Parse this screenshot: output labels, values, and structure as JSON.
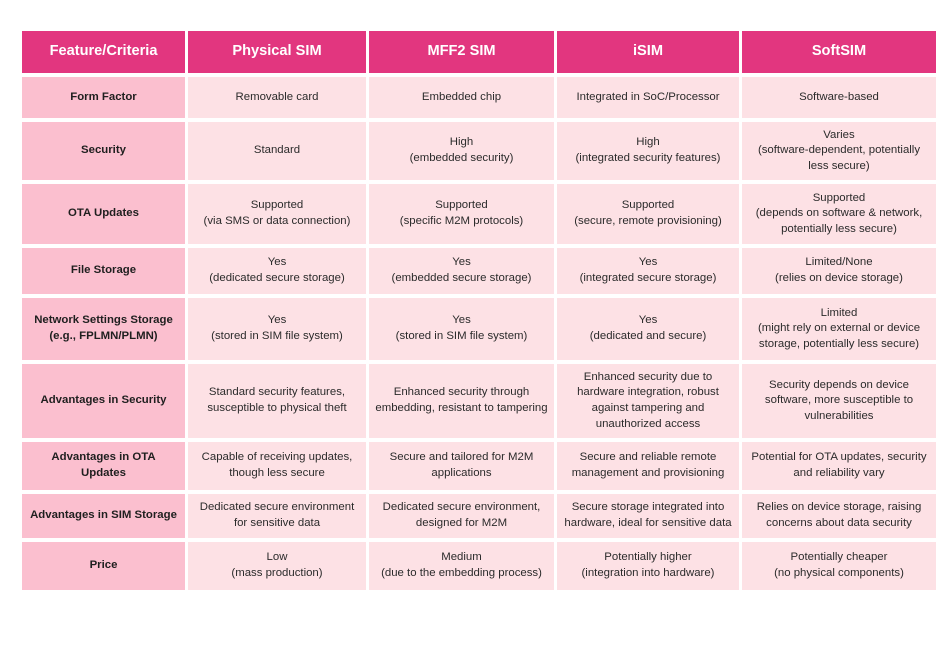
{
  "table": {
    "headers": [
      "Feature/Criteria",
      "Physical SIM",
      "MFF2 SIM",
      "iSIM",
      "SoftSIM"
    ],
    "rows": [
      {
        "feature": "Form Factor",
        "cells": [
          "Removable card",
          "Embedded chip",
          "Integrated in SoC/Processor",
          "Software-based"
        ]
      },
      {
        "feature": "Security",
        "cells": [
          "Standard",
          "High\n(embedded security)",
          "High\n(integrated security features)",
          "Varies\n(software-dependent, potentially\nless secure)"
        ]
      },
      {
        "feature": "OTA Updates",
        "cells": [
          "Supported\n(via SMS or data connection)",
          "Supported\n(specific M2M protocols)",
          "Supported\n(secure, remote provisioning)",
          "Supported\n(depends on software & network,\npotentially less secure)"
        ]
      },
      {
        "feature": "File Storage",
        "cells": [
          "Yes\n(dedicated secure storage)",
          "Yes\n(embedded secure storage)",
          "Yes\n(integrated secure storage)",
          "Limited/None\n(relies on device storage)"
        ]
      },
      {
        "feature": "Network Settings Storage\n(e.g., FPLMN/PLMN)",
        "cells": [
          "Yes\n(stored in SIM file system)",
          "Yes\n(stored in SIM file system)",
          "Yes\n(dedicated and secure)",
          "Limited\n(might rely on external or device\nstorage, potentially less secure)"
        ]
      },
      {
        "feature": "Advantages in Security",
        "cells": [
          "Standard security features,\nsusceptible to physical theft",
          "Enhanced security through\nembedding, resistant to tampering",
          "Enhanced security due to\nhardware integration, robust\nagainst tampering and\nunauthorized access",
          "Security depends on device\nsoftware, more susceptible to\nvulnerabilities"
        ]
      },
      {
        "feature": "Advantages in OTA\nUpdates",
        "cells": [
          "Capable of receiving updates,\nthough less secure",
          "Secure and tailored for M2M\napplications",
          "Secure and reliable remote\nmanagement and provisioning",
          "Potential for OTA updates, security\nand reliability vary"
        ]
      },
      {
        "feature": "Advantages in SIM Storage",
        "cells": [
          "Dedicated secure environment\nfor sensitive data",
          "Dedicated secure environment,\ndesigned for M2M",
          "Secure storage integrated into\nhardware, ideal for sensitive data",
          "Relies on device storage, raising\nconcerns about data security"
        ]
      },
      {
        "feature": "Price",
        "cells": [
          "Low\n(mass production)",
          "Medium\n(due to the embedding process)",
          "Potentially higher\n(integration into hardware)",
          "Potentially cheaper\n(no physical components)"
        ]
      }
    ]
  },
  "colors": {
    "header_bg": "#e2367f",
    "feature_bg": "#fbbfcf",
    "cell_bg": "#fde1e5"
  }
}
